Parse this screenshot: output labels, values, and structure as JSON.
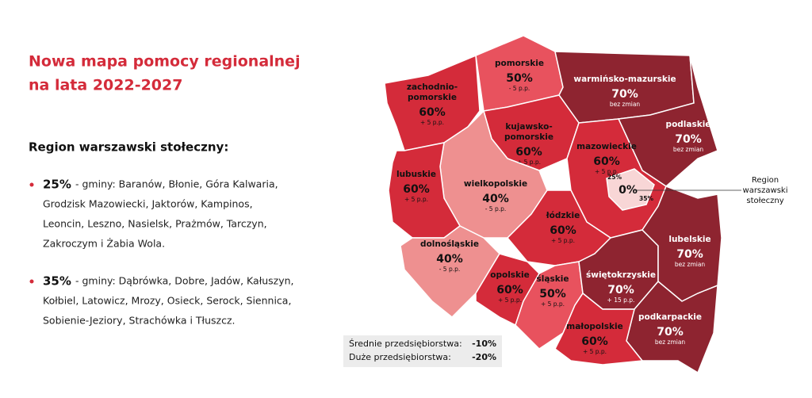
{
  "title": [
    "Nowa mapa pomocy regionalnej",
    "na lata 2022-2027"
  ],
  "subtitle": "Region warszawski stołeczny:",
  "bullets": [
    {
      "rate": "25%",
      "lines": [
        "- gminy: Baranów, Błonie, Góra Kalwaria,",
        "Grodzisk Mazowiecki, Jaktorów, Kampinos,",
        "Leoncin, Leszno, Nasielsk, Prażmów, Tarczyn,",
        "Zakroczym i Żabia Wola."
      ]
    },
    {
      "rate": "35%",
      "lines": [
        "- gminy: Dąbrówka, Dobre, Jadów, Kałuszyn,",
        "Kołbiel, Latowicz, Mrozy, Osieck, Serock, Siennica,",
        "Sobienie-Jeziory, Strachówka i Tłuszcz."
      ]
    }
  ],
  "regions": [
    {
      "name": [
        "zachodnio-",
        "pomorskie"
      ],
      "rate": "60%",
      "change": "+ 5 p.p."
    },
    {
      "name": [
        "pomorskie"
      ],
      "rate": "50%",
      "change": "- 5 p.p."
    },
    {
      "name": [
        "warmińsko-mazurskie"
      ],
      "rate": "70%",
      "change": "bez zmian"
    },
    {
      "name": [
        "podlaskie"
      ],
      "rate": "70%",
      "change": "bez zmian"
    },
    {
      "name": [
        "kujawsko-",
        "pomorskie"
      ],
      "rate": "60%",
      "change": "+ 5 p.p."
    },
    {
      "name": [
        "mazowieckie"
      ],
      "rate": "60%",
      "change": "+ 5 p.p."
    },
    {
      "name": [
        "wielkopolskie"
      ],
      "rate": "40%",
      "change": "- 5 p.p."
    },
    {
      "name": [
        "lubuskie"
      ],
      "rate": "60%",
      "change": "+ 5 p.p."
    },
    {
      "name": [
        "dolnośląskie"
      ],
      "rate": "40%",
      "change": "- 5 p.p."
    },
    {
      "name": [
        "opolskie"
      ],
      "rate": "60%",
      "change": "+ 5 p.p."
    },
    {
      "name": [
        "łódzkie"
      ],
      "rate": "60%",
      "change": "+ 5 p.p."
    },
    {
      "name": [
        "śląskie"
      ],
      "rate": "50%",
      "change": "+ 5 p.p."
    },
    {
      "name": [
        "świętokrzyskie"
      ],
      "rate": "70%",
      "change": "+ 15 p.p."
    },
    {
      "name": [
        "lubelskie"
      ],
      "rate": "70%",
      "change": "bez zmian"
    },
    {
      "name": [
        "podkarpackie"
      ],
      "rate": "70%",
      "change": "bez zmian"
    },
    {
      "name": [
        "małopolskie"
      ],
      "rate": "60%",
      "change": "+ 5 p.p."
    }
  ],
  "warsaw": {
    "rate": "0%",
    "low": "25%",
    "high": "35%",
    "label": [
      "Region",
      "warszawski",
      "stołeczny"
    ]
  },
  "legend": [
    {
      "label": "Średnie przedsiębiorstwa:",
      "value": "-10%"
    },
    {
      "label": "Duże przedsiębiorstwa:",
      "value": "-20%"
    }
  ]
}
